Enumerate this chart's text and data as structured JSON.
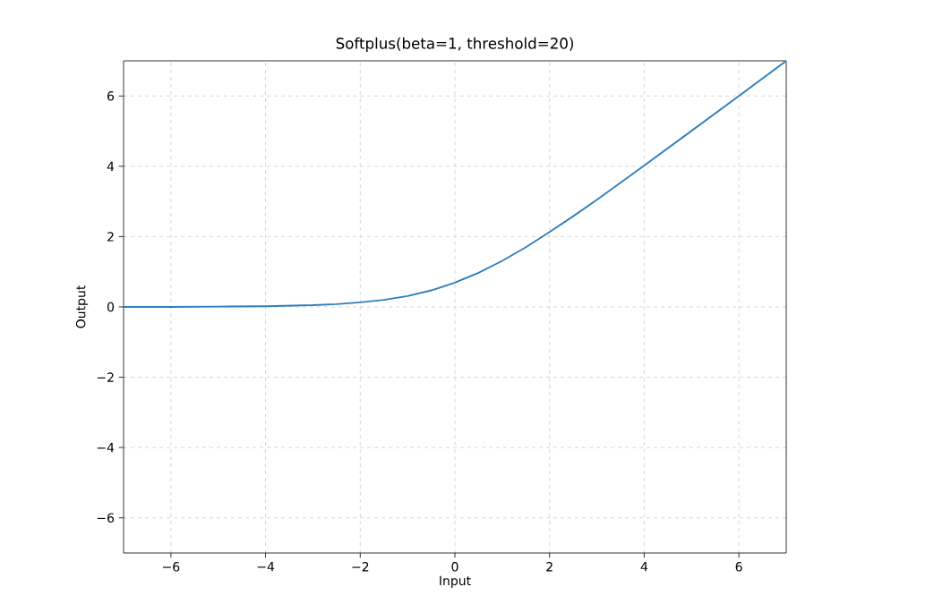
{
  "chart_data": {
    "type": "line",
    "title": "Softplus(beta=1, threshold=20)",
    "xlabel": "Input",
    "ylabel": "Output",
    "x": [
      -7,
      -6,
      -5,
      -4,
      -3,
      -2.5,
      -2,
      -1.5,
      -1,
      -0.5,
      0,
      0.5,
      1,
      1.5,
      2,
      2.5,
      3,
      4,
      5,
      6,
      7
    ],
    "values": [
      0.0,
      0.0,
      0.01,
      0.02,
      0.05,
      0.08,
      0.13,
      0.2,
      0.31,
      0.47,
      0.69,
      0.97,
      1.31,
      1.7,
      2.13,
      2.58,
      3.05,
      4.02,
      5.01,
      6.0,
      7.0
    ],
    "color": "#2e7ebc",
    "xlim": [
      -7,
      7
    ],
    "ylim": [
      -7,
      7
    ],
    "xticks": [
      {
        "value": -6,
        "label": "−6"
      },
      {
        "value": -4,
        "label": "−4"
      },
      {
        "value": -2,
        "label": "−2"
      },
      0,
      2,
      4,
      6
    ],
    "yticks": [
      {
        "value": -6,
        "label": "−6"
      },
      {
        "value": -4,
        "label": "−4"
      },
      {
        "value": -2,
        "label": "−2"
      },
      0,
      2,
      4,
      6
    ],
    "grid": true
  }
}
